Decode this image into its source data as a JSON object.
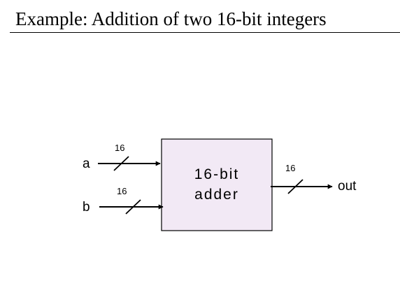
{
  "slide": {
    "title": "Example: Addition of two 16-bit integers"
  },
  "diagram": {
    "block": {
      "line1": "16-bit",
      "line2": "adder",
      "fill_color": "#f2e9f5",
      "border_color": "#000000"
    },
    "inputs": [
      {
        "name": "a",
        "width": "16"
      },
      {
        "name": "b",
        "width": "16"
      }
    ],
    "output": {
      "name": "out",
      "width": "16"
    }
  }
}
